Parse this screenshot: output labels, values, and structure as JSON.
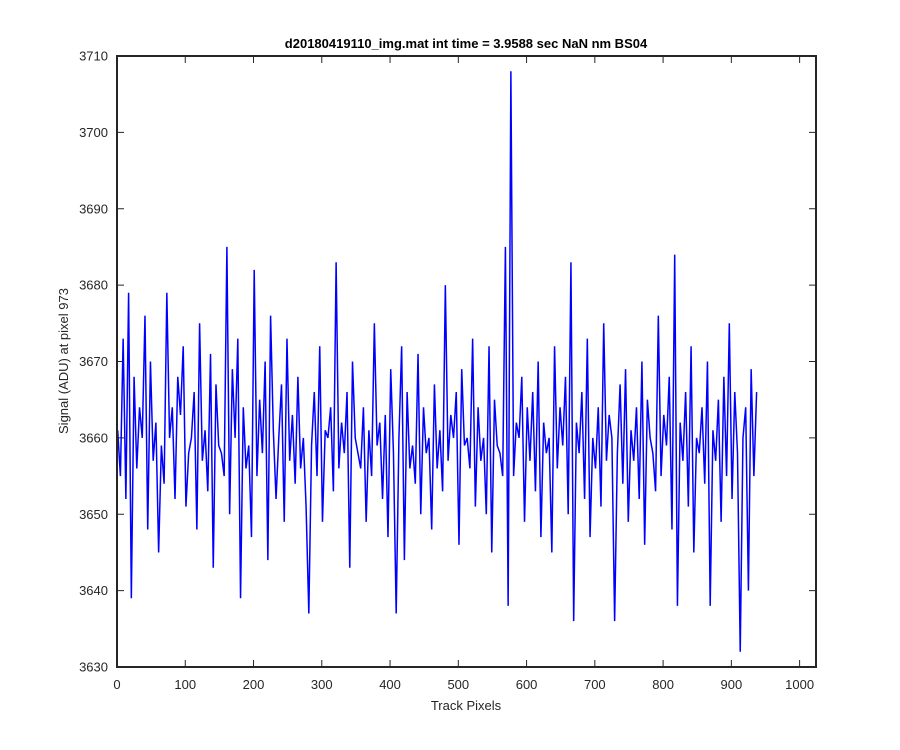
{
  "chart_data": {
    "type": "line",
    "title": "d20180419110_img.mat int time = 3.9588 sec  NaN nm BS04",
    "xlabel": "Track Pixels",
    "ylabel": "Signal (ADU) at pixel 973",
    "xlim": [
      0,
      1024
    ],
    "ylim": [
      3630,
      3710
    ],
    "xticks": [
      0,
      100,
      200,
      300,
      400,
      500,
      600,
      700,
      800,
      900,
      1000
    ],
    "yticks": [
      3630,
      3640,
      3650,
      3660,
      3670,
      3680,
      3690,
      3700,
      3710
    ],
    "grid": false,
    "series": [
      {
        "color": "#0000ff",
        "x_start": 1,
        "x_step": 4,
        "values": [
          3661,
          3655,
          3673,
          3652,
          3679,
          3639,
          3668,
          3656,
          3664,
          3660,
          3676,
          3648,
          3670,
          3657,
          3662,
          3645,
          3659,
          3654,
          3679,
          3660,
          3664,
          3652,
          3668,
          3663,
          3672,
          3651,
          3658,
          3660,
          3666,
          3648,
          3675,
          3657,
          3661,
          3653,
          3671,
          3643,
          3667,
          3659,
          3658,
          3655,
          3685,
          3650,
          3669,
          3660,
          3673,
          3639,
          3664,
          3656,
          3659,
          3647,
          3682,
          3655,
          3665,
          3658,
          3670,
          3644,
          3676,
          3661,
          3652,
          3660,
          3667,
          3649,
          3673,
          3657,
          3663,
          3654,
          3668,
          3656,
          3660,
          3651,
          3637,
          3659,
          3666,
          3655,
          3672,
          3649,
          3661,
          3660,
          3664,
          3653,
          3683,
          3656,
          3662,
          3658,
          3666,
          3643,
          3670,
          3660,
          3658,
          3656,
          3664,
          3649,
          3661,
          3655,
          3675,
          3659,
          3662,
          3652,
          3663,
          3647,
          3669,
          3658,
          3637,
          3660,
          3672,
          3644,
          3666,
          3656,
          3659,
          3654,
          3671,
          3650,
          3664,
          3658,
          3660,
          3648,
          3667,
          3656,
          3661,
          3653,
          3680,
          3657,
          3663,
          3660,
          3666,
          3646,
          3669,
          3659,
          3660,
          3656,
          3673,
          3651,
          3664,
          3657,
          3660,
          3650,
          3672,
          3645,
          3665,
          3659,
          3658,
          3655,
          3685,
          3638,
          3708,
          3655,
          3662,
          3660,
          3668,
          3649,
          3664,
          3657,
          3666,
          3653,
          3670,
          3647,
          3662,
          3658,
          3660,
          3645,
          3672,
          3656,
          3664,
          3659,
          3668,
          3650,
          3683,
          3636,
          3662,
          3658,
          3666,
          3652,
          3673,
          3647,
          3660,
          3656,
          3664,
          3651,
          3675,
          3657,
          3663,
          3660,
          3636,
          3658,
          3667,
          3654,
          3669,
          3649,
          3661,
          3657,
          3664,
          3652,
          3670,
          3646,
          3665,
          3660,
          3658,
          3653,
          3676,
          3655,
          3663,
          3659,
          3668,
          3648,
          3684,
          3638,
          3662,
          3657,
          3666,
          3651,
          3672,
          3645,
          3660,
          3658,
          3664,
          3654,
          3670,
          3638,
          3661,
          3657,
          3665,
          3649,
          3668,
          3655,
          3675,
          3652,
          3666,
          3658,
          3632,
          3660,
          3664,
          3640,
          3669,
          3655,
          3666
        ]
      }
    ]
  }
}
